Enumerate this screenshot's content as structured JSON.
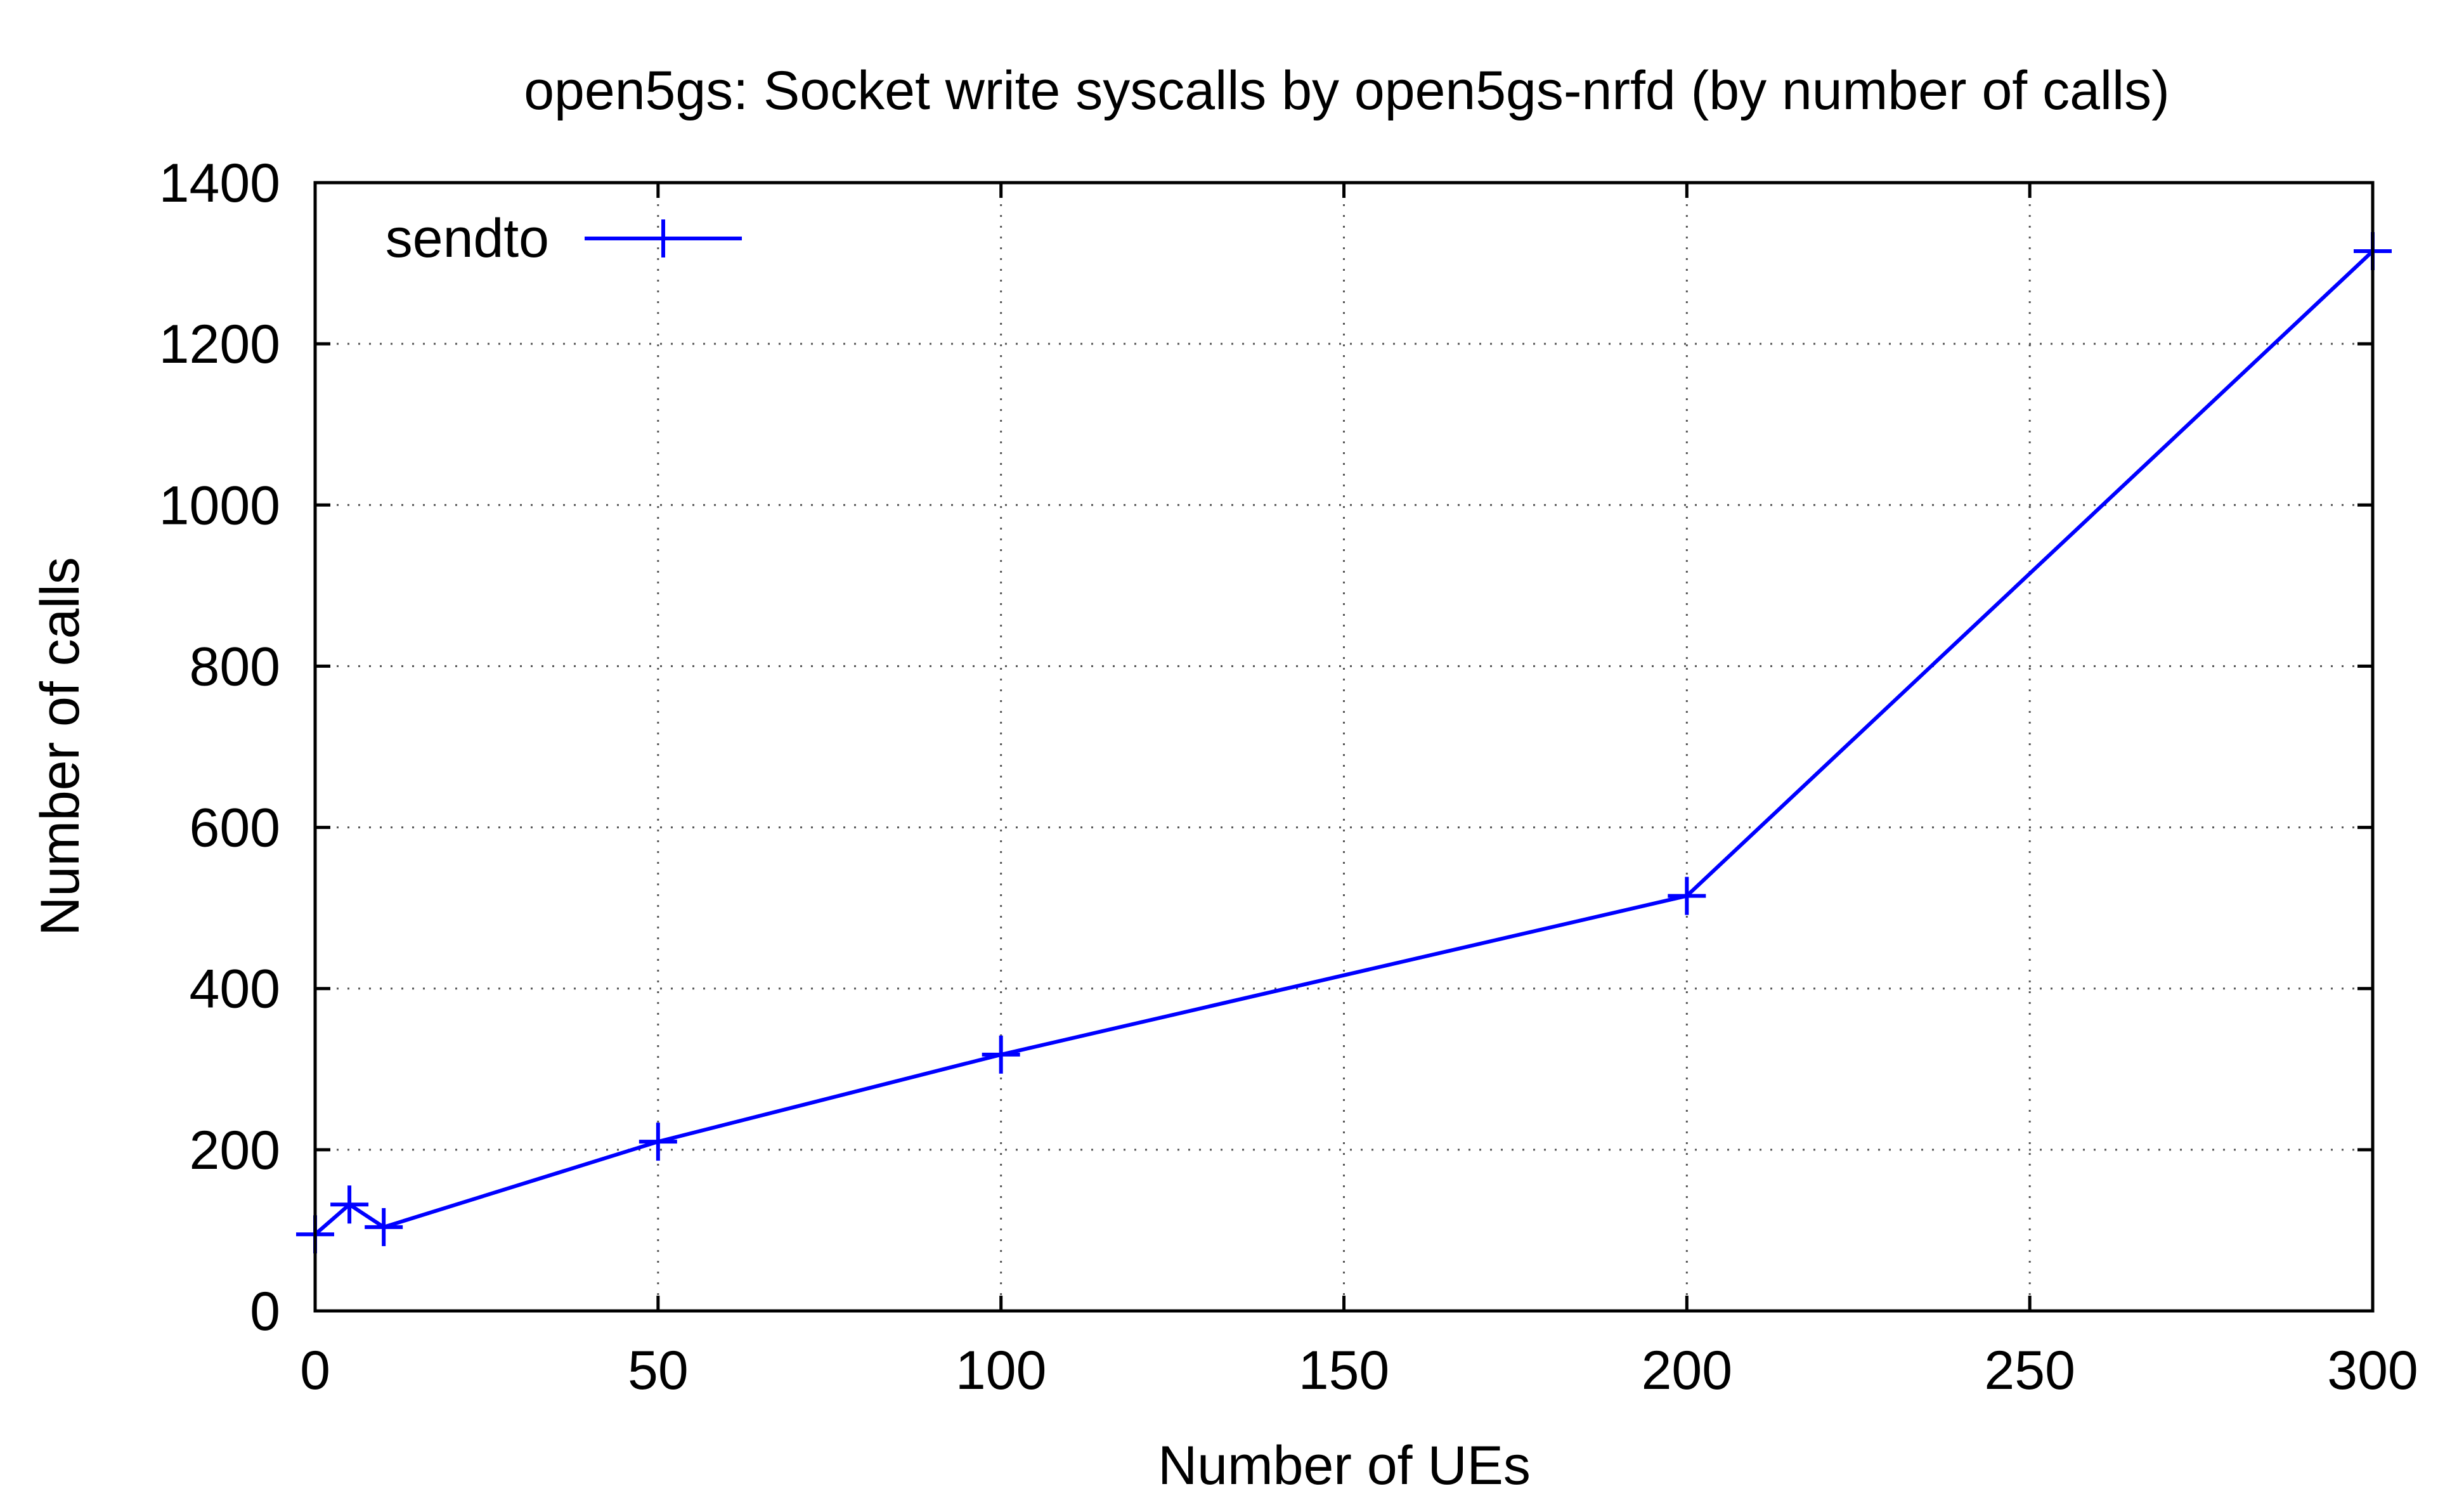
{
  "chart_data": {
    "type": "line",
    "title": "open5gs: Socket write syscalls by open5gs-nrfd (by number of calls)",
    "xlabel": "Number of UEs",
    "ylabel": "Number of calls",
    "xlim": [
      0,
      300
    ],
    "ylim": [
      0,
      1400
    ],
    "xticks": [
      0,
      50,
      100,
      150,
      200,
      250,
      300
    ],
    "yticks": [
      0,
      200,
      400,
      600,
      800,
      1000,
      1200,
      1400
    ],
    "grid": true,
    "legend_position": "top-left",
    "series": [
      {
        "name": "sendto",
        "color": "#0000ff",
        "marker": "plus",
        "x": [
          0,
          5,
          10,
          50,
          100,
          200,
          300
        ],
        "y": [
          95,
          132,
          104,
          210,
          318,
          515,
          1315
        ]
      }
    ]
  }
}
